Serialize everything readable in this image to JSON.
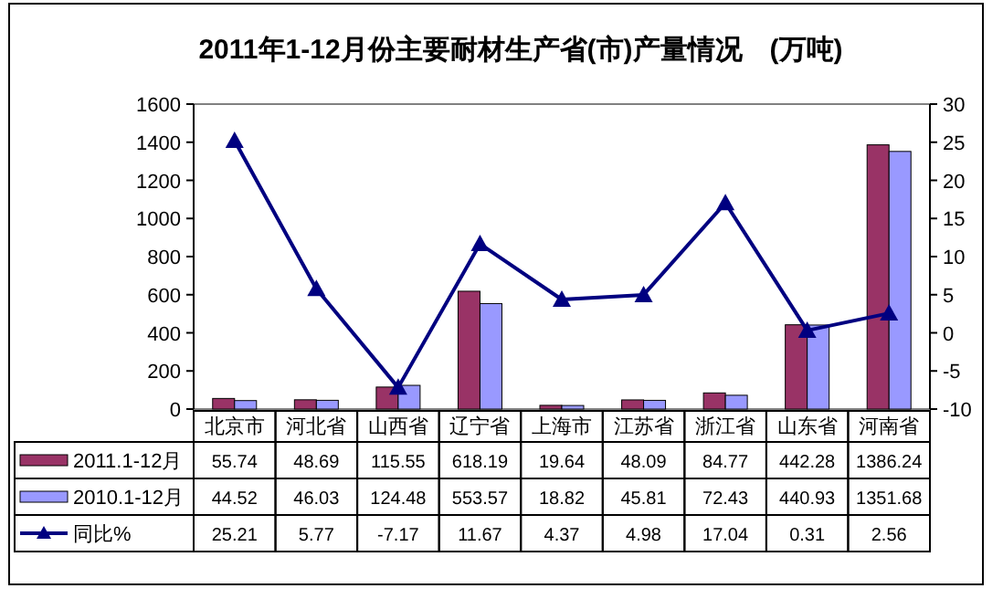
{
  "chart_data": {
    "type": "bar",
    "title": "2011年1-12月份主要耐材生产省(市)产量情况　(万吨)",
    "categories": [
      "北京市",
      "河北省",
      "山西省",
      "辽宁省",
      "上海市",
      "江苏省",
      "浙江省",
      "山东省",
      "河南省"
    ],
    "series": [
      {
        "name": "2011.1-12月",
        "color": "#993366",
        "values": [
          55.74,
          48.69,
          115.55,
          618.19,
          19.64,
          48.09,
          84.77,
          442.28,
          1386.24
        ]
      },
      {
        "name": "2010.1-12月",
        "color": "#9999ff",
        "values": [
          44.52,
          46.03,
          124.48,
          553.57,
          18.82,
          45.81,
          72.43,
          440.93,
          1351.68
        ]
      },
      {
        "name": "同比%",
        "type": "line",
        "axis": "y2",
        "color": "#000080",
        "marker": "triangle",
        "values": [
          25.21,
          5.77,
          -7.17,
          11.67,
          4.37,
          4.98,
          17.04,
          0.31,
          2.56
        ]
      }
    ],
    "ylim": [
      0,
      1600
    ],
    "yticks": [
      0,
      200,
      400,
      600,
      800,
      1000,
      1200,
      1400,
      1600
    ],
    "y2lim": [
      -10,
      30
    ],
    "y2ticks": [
      -10,
      -5,
      0,
      5,
      10,
      15,
      20,
      25,
      30
    ],
    "data_labels": true,
    "legend": "bottom left",
    "grid": false
  }
}
